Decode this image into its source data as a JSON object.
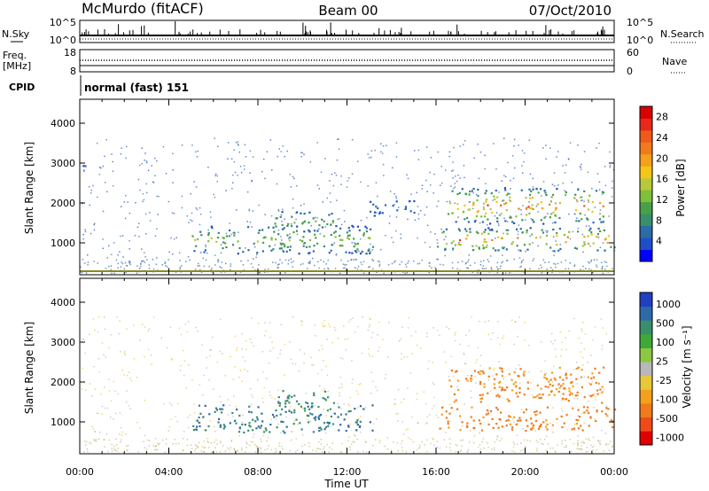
{
  "header": {
    "station": "McMurdo (fitACF)",
    "beam": "Beam 00",
    "date": "07/Oct/2010"
  },
  "noise_panel": {
    "left_label": "N.Sky",
    "right_label": "N.Search",
    "left_ticks": [
      "10^5",
      "10^0"
    ],
    "right_ticks": [
      "10^5",
      "10^0"
    ]
  },
  "freq_panel": {
    "left_label_line1": "Freq.",
    "left_label_line2": "[MHz]",
    "right_label": "Nave",
    "left_ticks": [
      "18",
      "8"
    ],
    "right_ticks": [
      "60",
      "0"
    ]
  },
  "cpid": {
    "label": "CPID",
    "mode": "normal (fast) 151"
  },
  "colors": {
    "power_scale": [
      "#0000ff",
      "#1f4fc8",
      "#2d6aa8",
      "#3a8f6b",
      "#4aa04a",
      "#7fbf3a",
      "#b8c83a",
      "#f5c518",
      "#f4a01c",
      "#f07a1c",
      "#ee5a1a",
      "#e8281a",
      "#d80000"
    ],
    "velocity_scale": [
      "#2040c0",
      "#2f6aa8",
      "#3a8f6b",
      "#3ea83a",
      "#8cc840",
      "#b8b8b8",
      "#e8c83a",
      "#f4a01c",
      "#f07a1c",
      "#ee4a1a",
      "#e00000"
    ]
  },
  "chart_data": [
    {
      "type": "heatmap",
      "title": "",
      "xlabel": "",
      "ylabel": "Slant Range [km]",
      "xlim": [
        0,
        24
      ],
      "ylim": [
        200,
        4600
      ],
      "yticks": [
        "1000",
        "2000",
        "3000",
        "4000"
      ],
      "colorbar": {
        "label": "Power [dB]",
        "ticks": [
          "4",
          "8",
          "12",
          "16",
          "20",
          "24",
          "28"
        ],
        "range": [
          0,
          30
        ]
      },
      "regions": [
        {
          "t_start": 5.0,
          "t_end": 13.2,
          "r_low": 750,
          "r_high": 1450,
          "level": "weak-moderate",
          "max_db": 16
        },
        {
          "t_start": 8.5,
          "t_end": 11.5,
          "r_low": 1300,
          "r_high": 1800,
          "level": "weak-moderate",
          "max_db": 14
        },
        {
          "t_start": 16.0,
          "t_end": 24.0,
          "r_low": 800,
          "r_high": 1400,
          "level": "strong",
          "max_db": 28
        },
        {
          "t_start": 16.5,
          "t_end": 23.5,
          "r_low": 1500,
          "r_high": 2400,
          "level": "strong",
          "max_db": 28
        },
        {
          "t_start": 13.0,
          "t_end": 15.0,
          "r_low": 1700,
          "r_high": 2100,
          "level": "weak",
          "max_db": 6
        },
        {
          "t_start": 0.0,
          "t_end": 0.4,
          "r_low": 2800,
          "r_high": 3000,
          "level": "weak",
          "max_db": 6
        }
      ]
    },
    {
      "type": "heatmap",
      "title": "",
      "xlabel": "Time UT",
      "ylabel": "Slant Range [km]",
      "xlim": [
        0,
        24
      ],
      "ylim": [
        200,
        4600
      ],
      "xticks": [
        "00:00",
        "04:00",
        "08:00",
        "12:00",
        "16:00",
        "20:00",
        "00:00"
      ],
      "yticks": [
        "1000",
        "2000",
        "3000",
        "4000"
      ],
      "colorbar": {
        "label": "Velocity [m s⁻¹]",
        "ticks": [
          "1000",
          "500",
          "100",
          "25",
          "-25",
          "-100",
          "-500",
          "-1000"
        ]
      },
      "regions": [
        {
          "t_start": 5.0,
          "t_end": 13.2,
          "r_low": 750,
          "r_high": 1450,
          "velocity_ms": 300
        },
        {
          "t_start": 8.5,
          "t_end": 11.5,
          "r_low": 1300,
          "r_high": 1800,
          "velocity_ms": 150
        },
        {
          "t_start": 16.0,
          "t_end": 24.0,
          "r_low": 800,
          "r_high": 1400,
          "velocity_ms": -200
        },
        {
          "t_start": 16.5,
          "t_end": 23.5,
          "r_low": 1500,
          "r_high": 2400,
          "velocity_ms": -150
        }
      ]
    }
  ]
}
